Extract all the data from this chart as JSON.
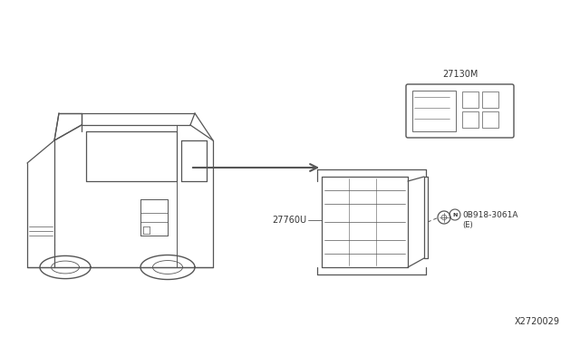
{
  "bg_color": "#ffffff",
  "line_color": "#555555",
  "text_color": "#333333",
  "diagram_ref": "X2720029",
  "label_27130M": "27130M",
  "label_27760U": "27760U",
  "label_bolt": "0B918-3061A",
  "label_bolt_sub": "(E)"
}
